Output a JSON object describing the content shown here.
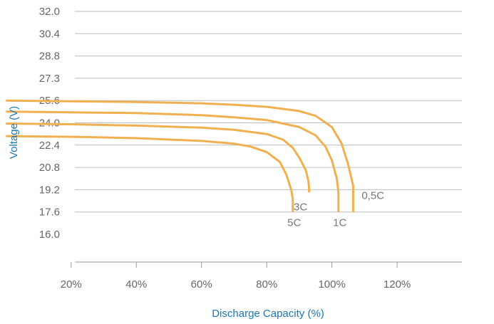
{
  "chart_data": {
    "type": "line",
    "xlabel": "Discharge Capacity (%)",
    "ylabel": "Voltage (V)",
    "y_ticks": [
      "32.0",
      "30.4",
      "28.8",
      "27.3",
      "25.6",
      "24.0",
      "22.4",
      "20.8",
      "19.2",
      "17.6",
      "16.0"
    ],
    "x_ticks": [
      "20%",
      "40%",
      "60%",
      "80%",
      "100%",
      "120%"
    ],
    "xlim": [
      0,
      120
    ],
    "ylim": [
      16.0,
      32.0
    ],
    "grid": "horizontal",
    "line_color": "#f0b050",
    "series": [
      {
        "name": "0,5C",
        "x": [
          0,
          20,
          40,
          60,
          70,
          80,
          90,
          95,
          100,
          103,
          105,
          106.5,
          106.5
        ],
        "y": [
          25.6,
          25.55,
          25.5,
          25.4,
          25.3,
          25.15,
          24.85,
          24.5,
          23.7,
          22.5,
          21.0,
          19.5,
          17.6
        ]
      },
      {
        "name": "1C",
        "x": [
          0,
          20,
          40,
          60,
          70,
          80,
          90,
          95,
          98,
          100,
          101.5,
          102,
          102
        ],
        "y": [
          24.8,
          24.75,
          24.7,
          24.55,
          24.4,
          24.2,
          23.7,
          23.1,
          22.3,
          21.3,
          20.0,
          19.0,
          17.6
        ]
      },
      {
        "name": "3C",
        "x": [
          0,
          20,
          40,
          60,
          70,
          80,
          85,
          88,
          90,
          92,
          92.8,
          93,
          93
        ],
        "y": [
          23.95,
          23.9,
          23.8,
          23.65,
          23.5,
          23.2,
          22.8,
          22.2,
          21.5,
          20.6,
          19.8,
          19.3,
          19.0
        ]
      },
      {
        "name": "5C",
        "x": [
          0,
          20,
          40,
          60,
          70,
          75,
          80,
          84,
          86,
          87.5,
          88,
          88
        ],
        "y": [
          23.05,
          23.0,
          22.9,
          22.7,
          22.5,
          22.3,
          21.9,
          21.2,
          20.3,
          19.2,
          18.5,
          17.6
        ]
      }
    ]
  }
}
